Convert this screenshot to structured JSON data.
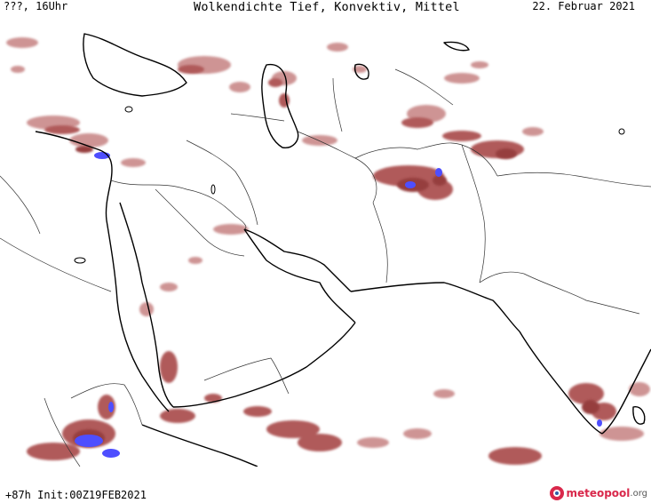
{
  "header": {
    "left": "???, 16Uhr",
    "center": "Wolkendichte   Tief, Konvektiv, Mittel",
    "right": "22. Februar 2021"
  },
  "footer": {
    "run_info": "+87h Init:00Z19FEB2021"
  },
  "logo": {
    "name": "meteopool",
    "tld": ".org"
  },
  "colors": {
    "cloud_light": "#e8b4b4",
    "cloud_medium": "#b05a5a",
    "cloud_dense": "#8b2a2a",
    "cloud_max": "#3b3bff",
    "coast": "#000000",
    "border": "#333333"
  }
}
